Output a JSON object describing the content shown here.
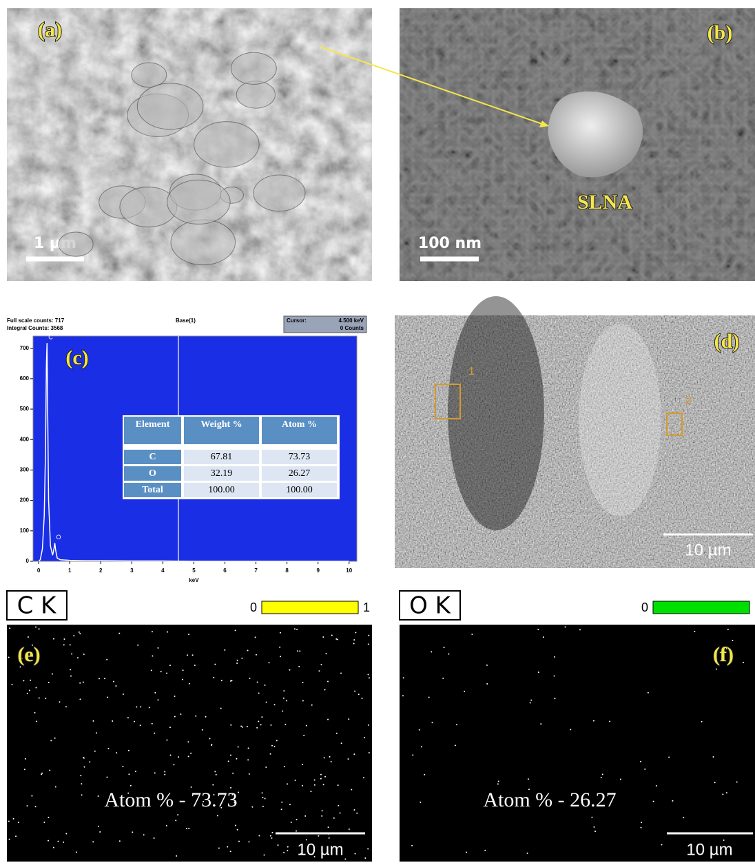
{
  "panels": {
    "a": {
      "label": "(a)",
      "scale_bar": "1 µm"
    },
    "b": {
      "label": "(b)",
      "scale_bar": "100 nm",
      "annotation": "SLNA"
    },
    "c": {
      "label": "(c)",
      "full_scale": "Full scale counts: 717",
      "integral": "Integral Counts: 3568",
      "base": "Base(1)",
      "cursor_label": "Cursor:",
      "cursor_value": "4.500 keV",
      "cursor_counts": "0 Counts"
    },
    "d": {
      "label": "(d)",
      "sites": [
        "1",
        "2"
      ],
      "scale_bar": "10 µm"
    },
    "e": {
      "label": "(e)",
      "map": "C K",
      "bar_min": "0",
      "bar_max": "1",
      "atom": "Atom % - 73.73",
      "scale_bar": "10 µm"
    },
    "f": {
      "label": "(f)",
      "map": "O K",
      "bar_min": "0",
      "atom": "Atom % - 26.27",
      "scale_bar": "10 µm"
    }
  },
  "table": {
    "header": [
      "Element",
      "Weight %",
      "Atom %"
    ],
    "rows": [
      [
        "C",
        "67.81",
        "73.73"
      ],
      [
        "O",
        "32.19",
        "26.27"
      ],
      [
        "Total",
        "100.00",
        "100.00"
      ]
    ]
  },
  "chart_data": {
    "type": "line",
    "xlabel": "keV",
    "x": [
      0,
      0.05,
      0.12,
      0.18,
      0.22,
      0.25,
      0.27,
      0.29,
      0.32,
      0.38,
      0.45,
      0.5,
      0.52,
      0.55,
      0.6,
      0.7,
      1,
      1.5,
      2,
      3,
      4,
      5,
      6,
      7,
      8,
      9,
      10
    ],
    "values": [
      0,
      5,
      40,
      150,
      360,
      650,
      717,
      500,
      200,
      50,
      20,
      45,
      60,
      35,
      10,
      5,
      3,
      2,
      2,
      1,
      1,
      0,
      0,
      0,
      0,
      0,
      0
    ],
    "color": "#ffffff",
    "background": "#1a2ee6",
    "annotations": [
      {
        "text": "C",
        "x": 0.27,
        "y": 717
      },
      {
        "text": "O",
        "x": 0.52,
        "y": 60
      }
    ],
    "cursor": 4.5,
    "xlim": [
      -0.18,
      10.25
    ],
    "ylim": [
      0,
      740
    ],
    "xticks": [
      0,
      1,
      2,
      3,
      4,
      5,
      6,
      7,
      8,
      9,
      10
    ],
    "yticks": [
      0,
      100,
      200,
      300,
      400,
      500,
      600,
      700
    ]
  }
}
